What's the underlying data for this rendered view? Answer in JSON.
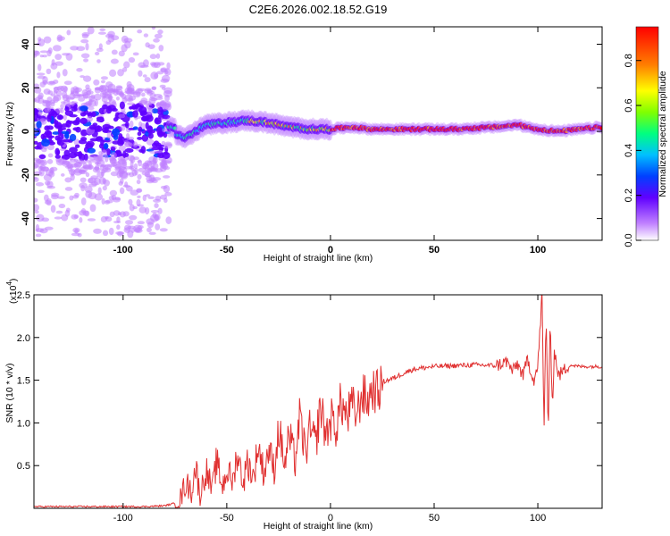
{
  "title": "C2E6.2026.002.18.52.G19",
  "chart_data": [
    {
      "type": "heatmap",
      "xlabel": "Height of straight line (km)",
      "ylabel": "Frequency (Hz)",
      "xlim": [
        -143,
        131
      ],
      "ylim": [
        -50,
        48
      ],
      "xticks": [
        -100,
        -50,
        0,
        50,
        100
      ],
      "yticks": [
        -40,
        -20,
        0,
        20,
        40
      ],
      "colorbar": {
        "label": "Normalized spectral amplitude",
        "range": [
          0,
          1
        ],
        "ticks": [
          "0.0",
          "0.2",
          "0.4",
          "0.6",
          "0.8"
        ],
        "colors": [
          "#ffffff",
          "#c080ff",
          "#6000ff",
          "#0040ff",
          "#00c0ff",
          "#00ff80",
          "#80ff00",
          "#ffff00",
          "#ff8000",
          "#ff0000"
        ]
      },
      "ridge": {
        "description_points_x": [
          -75,
          -70,
          -65,
          -60,
          -50,
          -40,
          -30,
          -20,
          -10,
          0,
          10,
          20,
          40,
          60,
          80,
          90,
          100,
          110,
          131
        ],
        "frequency_hz": [
          -1,
          -3,
          0,
          3,
          4,
          5,
          4,
          2,
          1,
          1,
          2,
          1,
          1,
          1,
          2,
          3,
          1,
          0,
          2
        ]
      }
    },
    {
      "type": "line",
      "xlabel": "Height of straight line (km)",
      "ylabel": "SNR (10 * v/v)",
      "y_multiplier_label": "(x10",
      "y_multiplier_exp": "4",
      "y_multiplier_close": ")",
      "xlim": [
        -143,
        131
      ],
      "ylim": [
        0,
        2.5
      ],
      "xticks": [
        -100,
        -50,
        0,
        50,
        100
      ],
      "yticks": [
        "0.5",
        "1.0",
        "1.5",
        "2.0",
        "2.5"
      ],
      "line_color": "#e03030",
      "series": [
        {
          "x": [
            -143,
            -120,
            -90,
            -80,
            -75,
            -72,
            -70,
            -67,
            -65,
            -63,
            -60,
            -57,
            -55,
            -52,
            -50,
            -47,
            -45,
            -42,
            -40,
            -37,
            -35,
            -32,
            -30,
            -27,
            -25,
            -22,
            -20,
            -17,
            -15,
            -12,
            -10,
            -7,
            -5,
            -2,
            0,
            3,
            5,
            8,
            10,
            13,
            15,
            18,
            20,
            23,
            25,
            30,
            35,
            40,
            50,
            60,
            70,
            80,
            85,
            88,
            90,
            93,
            95,
            98,
            100,
            102,
            103,
            104,
            105,
            106,
            107,
            108,
            110,
            115,
            120,
            131
          ],
          "y": [
            0.02,
            0.02,
            0.02,
            0.03,
            0.06,
            0.12,
            0.3,
            0.2,
            0.5,
            0.15,
            0.45,
            0.2,
            0.55,
            0.25,
            0.45,
            0.3,
            0.65,
            0.3,
            0.55,
            0.35,
            0.75,
            0.4,
            0.7,
            0.45,
            0.95,
            0.5,
            0.85,
            0.55,
            1.05,
            0.65,
            0.9,
            0.75,
            1.2,
            0.85,
            1.05,
            0.95,
            1.25,
            1.05,
            1.2,
            1.1,
            1.35,
            1.25,
            1.4,
            1.35,
            1.48,
            1.52,
            1.58,
            1.63,
            1.66,
            1.67,
            1.68,
            1.67,
            1.72,
            1.6,
            1.7,
            1.55,
            1.75,
            1.5,
            1.65,
            2.5,
            0.9,
            2.3,
            0.85,
            2.2,
            1.2,
            1.85,
            1.55,
            1.68,
            1.66,
            1.66
          ]
        }
      ]
    }
  ]
}
